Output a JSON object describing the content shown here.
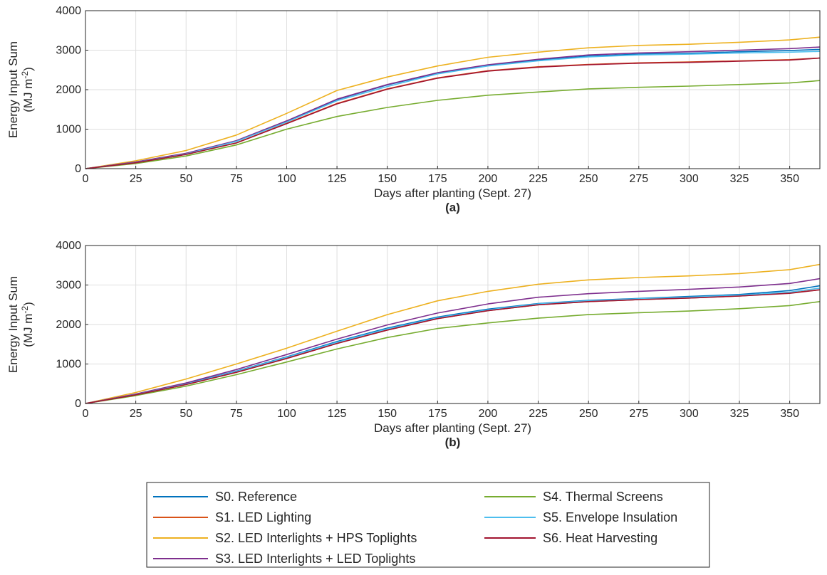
{
  "chart_data": [
    {
      "type": "line",
      "panel_label": "(a)",
      "xlabel": "Days after planting (Sept. 27)",
      "ylabel_line1": "Energy Input Sum",
      "ylabel_line2_main": "(MJ m",
      "ylabel_line2_sup": "-2",
      "ylabel_line2_end": ")",
      "xlim": [
        0,
        365
      ],
      "ylim": [
        0,
        4000
      ],
      "xticks": [
        0,
        25,
        50,
        75,
        100,
        125,
        150,
        175,
        200,
        225,
        250,
        275,
        300,
        325,
        350
      ],
      "yticks": [
        0,
        1000,
        2000,
        3000,
        4000
      ],
      "grid": true,
      "x": [
        0,
        25,
        50,
        75,
        100,
        125,
        150,
        175,
        200,
        225,
        250,
        275,
        300,
        325,
        350,
        365
      ],
      "series": [
        {
          "name": "S0. Reference",
          "color": "#0072BD",
          "values": [
            0,
            160,
            380,
            700,
            1200,
            1750,
            2120,
            2420,
            2620,
            2750,
            2850,
            2900,
            2920,
            2960,
            2990,
            3020
          ]
        },
        {
          "name": "S1. LED Lighting",
          "color": "#D95319",
          "values": [
            0,
            150,
            360,
            650,
            1150,
            1650,
            2020,
            2300,
            2480,
            2580,
            2640,
            2680,
            2700,
            2730,
            2760,
            2800
          ]
        },
        {
          "name": "S2. LED Interlights + HPS Toplights",
          "color": "#EDB120",
          "values": [
            0,
            200,
            460,
            850,
            1400,
            1980,
            2320,
            2600,
            2820,
            2950,
            3060,
            3120,
            3150,
            3200,
            3260,
            3330
          ]
        },
        {
          "name": "S3. LED Interlights + LED Toplights",
          "color": "#7E2F8E",
          "values": [
            0,
            170,
            390,
            710,
            1210,
            1760,
            2130,
            2430,
            2630,
            2770,
            2880,
            2930,
            2960,
            3000,
            3040,
            3080
          ]
        },
        {
          "name": "S4. Thermal Screens",
          "color": "#77AC30",
          "values": [
            0,
            130,
            320,
            600,
            1000,
            1320,
            1550,
            1730,
            1860,
            1940,
            2020,
            2060,
            2090,
            2130,
            2170,
            2230
          ]
        },
        {
          "name": "S5. Envelope Insulation",
          "color": "#4DBEEE",
          "values": [
            0,
            155,
            370,
            690,
            1180,
            1720,
            2080,
            2400,
            2600,
            2730,
            2830,
            2880,
            2900,
            2930,
            2950,
            2970
          ]
        },
        {
          "name": "S6. Heat Harvesting",
          "color": "#A2142F",
          "values": [
            0,
            150,
            360,
            650,
            1140,
            1640,
            2010,
            2290,
            2470,
            2570,
            2630,
            2670,
            2690,
            2720,
            2750,
            2800
          ]
        }
      ]
    },
    {
      "type": "line",
      "panel_label": "(b)",
      "xlabel": "Days after planting (Sept. 27)",
      "ylabel_line1": "Energy Input Sum",
      "ylabel_line2_main": "(MJ m",
      "ylabel_line2_sup": "-2",
      "ylabel_line2_end": ")",
      "xlim": [
        0,
        365
      ],
      "ylim": [
        0,
        4000
      ],
      "xticks": [
        0,
        25,
        50,
        75,
        100,
        125,
        150,
        175,
        200,
        225,
        250,
        275,
        300,
        325,
        350
      ],
      "yticks": [
        0,
        1000,
        2000,
        3000,
        4000
      ],
      "grid": true,
      "x": [
        0,
        25,
        50,
        75,
        100,
        125,
        150,
        175,
        200,
        225,
        250,
        275,
        300,
        325,
        350,
        365
      ],
      "series": [
        {
          "name": "S0. Reference",
          "color": "#0072BD",
          "values": [
            0,
            230,
            500,
            820,
            1180,
            1570,
            1910,
            2190,
            2390,
            2530,
            2610,
            2660,
            2710,
            2760,
            2860,
            2980
          ]
        },
        {
          "name": "S1. LED Lighting",
          "color": "#D95319",
          "values": [
            0,
            220,
            480,
            790,
            1140,
            1520,
            1860,
            2150,
            2350,
            2500,
            2580,
            2630,
            2670,
            2720,
            2800,
            2880
          ]
        },
        {
          "name": "S2. LED Interlights + HPS Toplights",
          "color": "#EDB120",
          "values": [
            0,
            280,
            620,
            1000,
            1400,
            1830,
            2250,
            2600,
            2840,
            3020,
            3130,
            3190,
            3230,
            3290,
            3390,
            3520
          ]
        },
        {
          "name": "S3. LED Interlights + LED Toplights",
          "color": "#7E2F8E",
          "values": [
            0,
            240,
            520,
            860,
            1240,
            1630,
            1990,
            2290,
            2520,
            2690,
            2780,
            2840,
            2890,
            2950,
            3040,
            3160
          ]
        },
        {
          "name": "S4. Thermal Screens",
          "color": "#77AC30",
          "values": [
            0,
            200,
            440,
            730,
            1050,
            1380,
            1670,
            1900,
            2040,
            2160,
            2250,
            2300,
            2340,
            2400,
            2480,
            2580
          ]
        },
        {
          "name": "S5. Envelope Insulation",
          "color": "#4DBEEE",
          "values": [
            0,
            225,
            490,
            810,
            1170,
            1550,
            1890,
            2170,
            2370,
            2520,
            2600,
            2650,
            2690,
            2740,
            2820,
            2920
          ]
        },
        {
          "name": "S6. Heat Harvesting",
          "color": "#A2142F",
          "values": [
            0,
            220,
            480,
            790,
            1140,
            1520,
            1860,
            2150,
            2350,
            2500,
            2580,
            2630,
            2670,
            2720,
            2790,
            2880
          ]
        }
      ]
    }
  ],
  "legend": {
    "columns": [
      [
        "S0. Reference",
        "S1. LED Lighting",
        "S2. LED Interlights + HPS Toplights",
        "S3. LED Interlights + LED Toplights"
      ],
      [
        "S4. Thermal Screens",
        "S5. Envelope Insulation",
        "S6. Heat Harvesting"
      ]
    ]
  }
}
